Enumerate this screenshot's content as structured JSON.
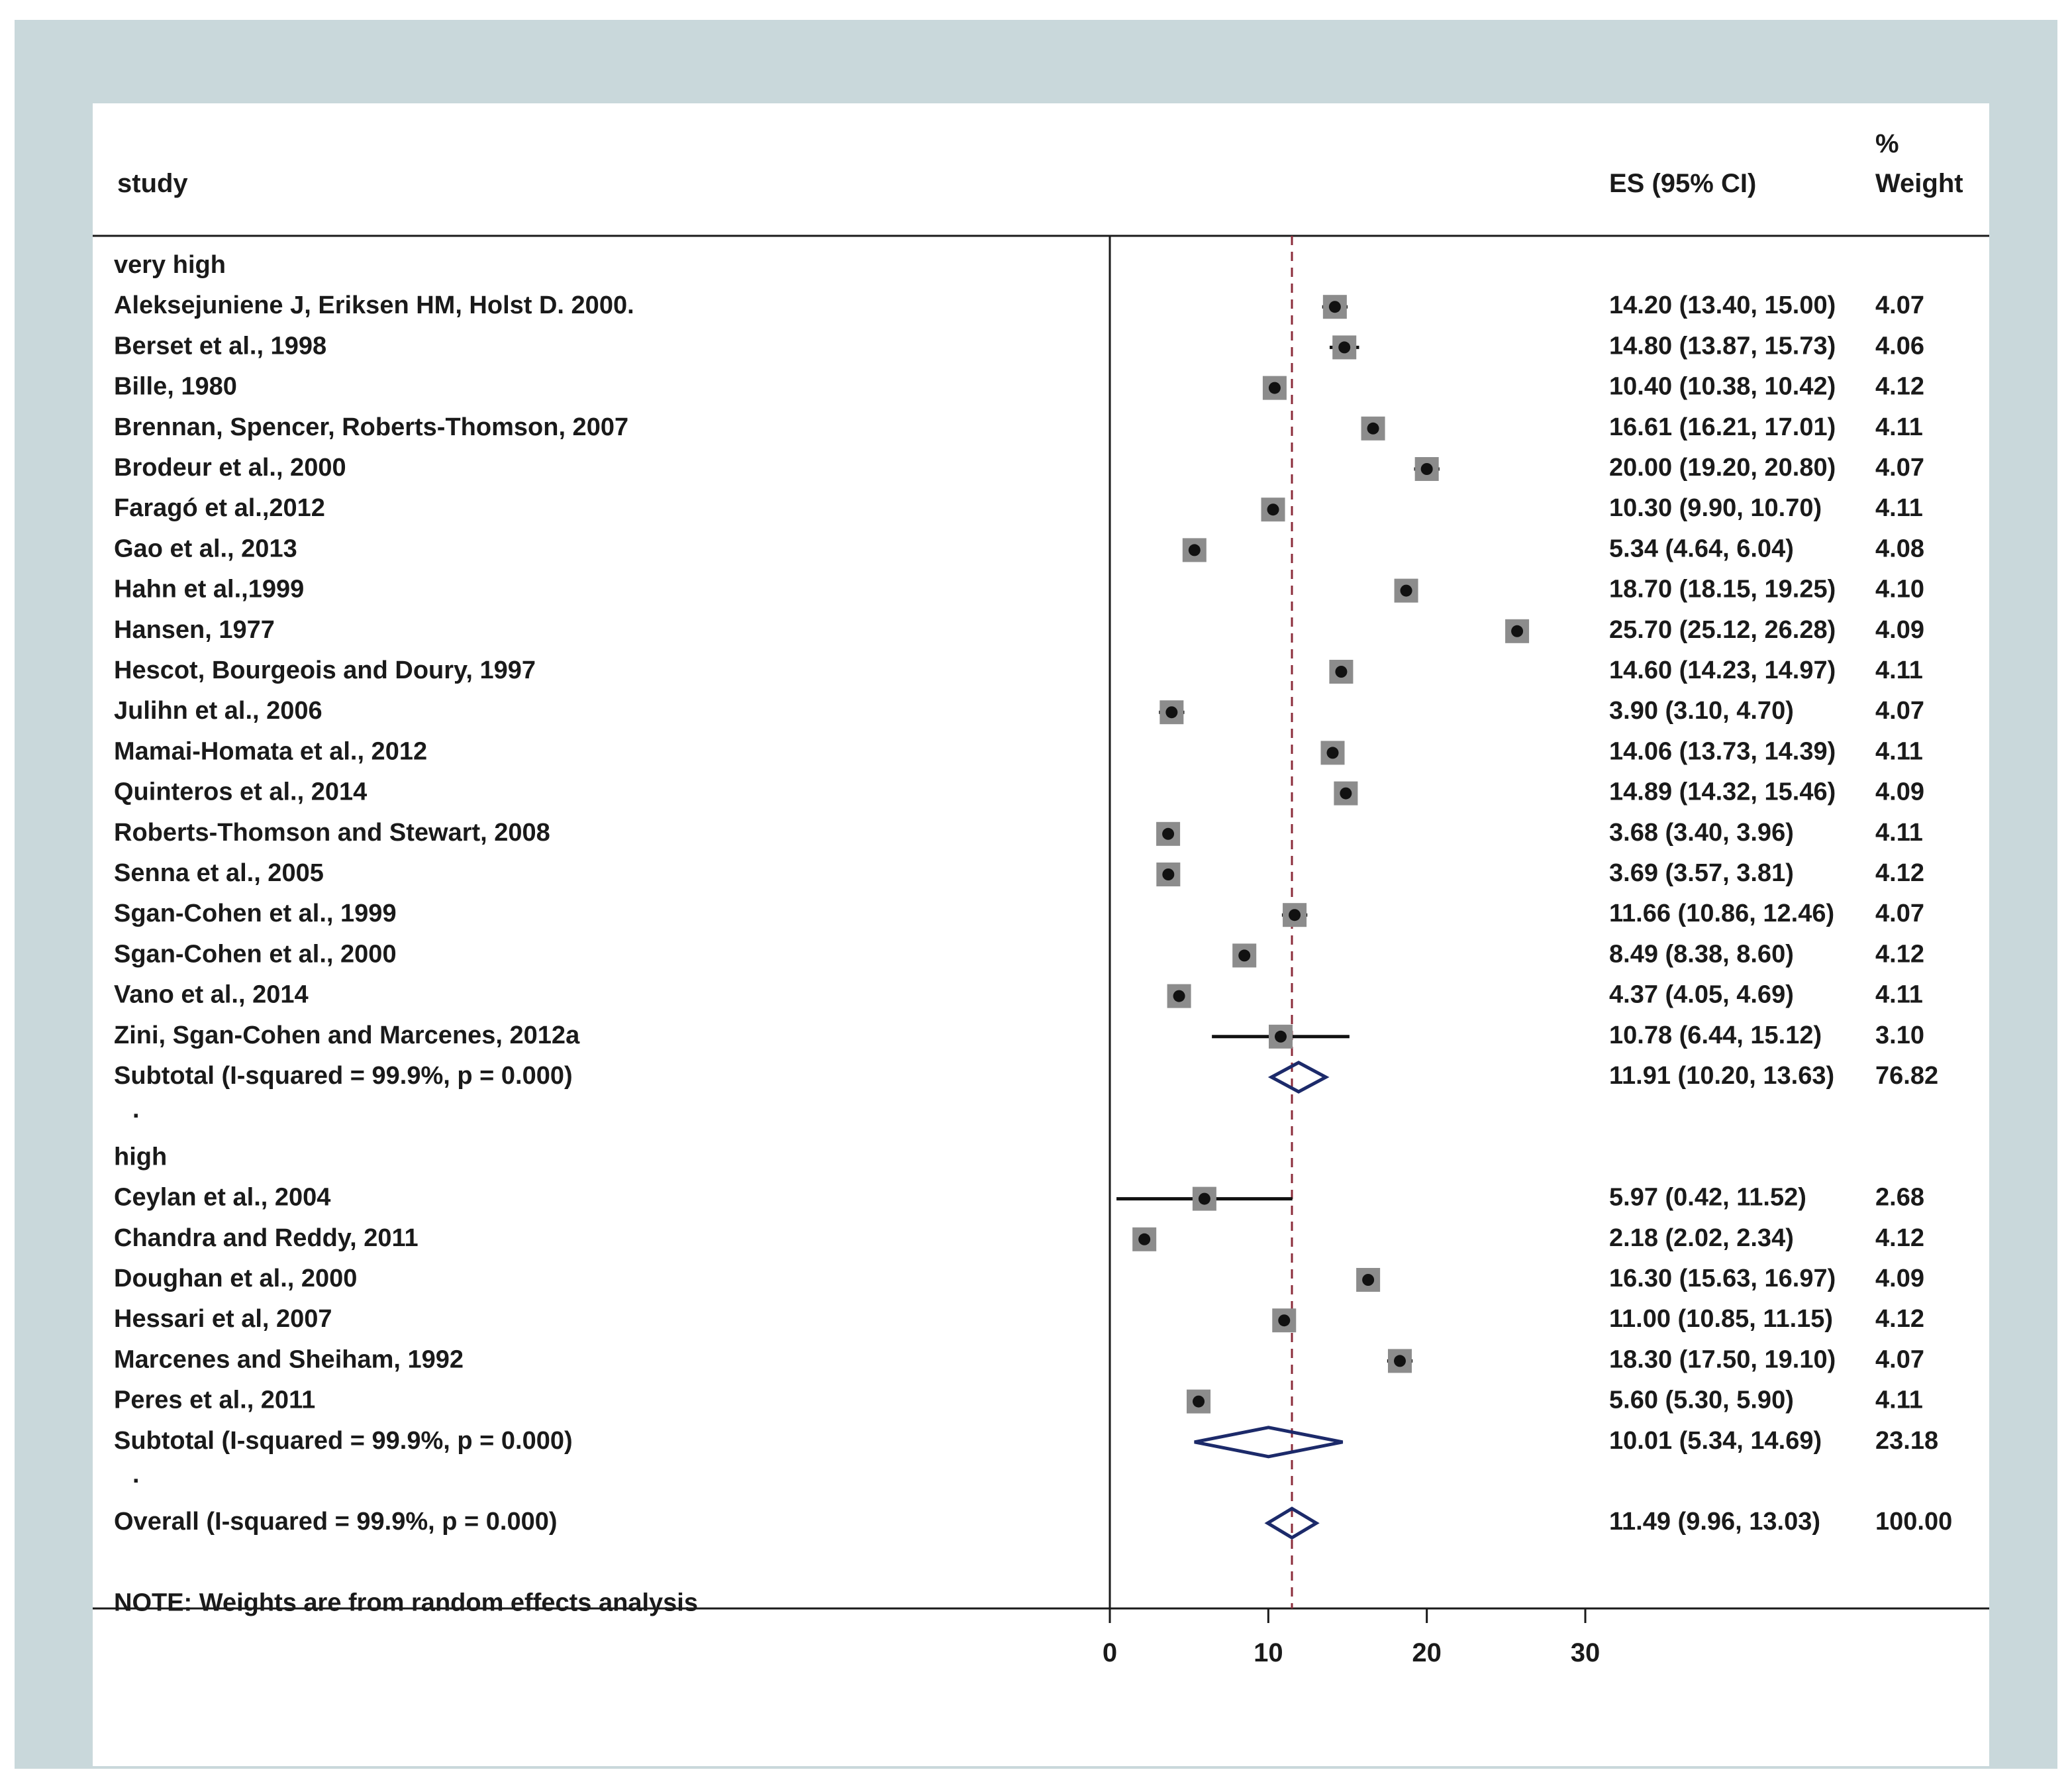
{
  "chart_data": {
    "type": "forest",
    "headers": {
      "study": "study",
      "es": "ES (95% CI)",
      "weight_line1": "%",
      "weight_line2": "Weight"
    },
    "x_ticks": [
      0,
      10,
      20,
      30
    ],
    "xlim": [
      0,
      30
    ],
    "overall_line": 11.49,
    "rows": [
      {
        "kind": "group",
        "label": "very high"
      },
      {
        "kind": "study",
        "label": "Aleksejuniene J, Eriksen HM, Holst D. 2000.",
        "es": 14.2,
        "lo": 13.4,
        "hi": 15.0,
        "es_text": "14.20 (13.40, 15.00)",
        "weight": "4.07"
      },
      {
        "kind": "study",
        "label": "Berset et al., 1998",
        "es": 14.8,
        "lo": 13.87,
        "hi": 15.73,
        "es_text": "14.80 (13.87, 15.73)",
        "weight": "4.06"
      },
      {
        "kind": "study",
        "label": "Bille, 1980",
        "es": 10.4,
        "lo": 10.38,
        "hi": 10.42,
        "es_text": "10.40 (10.38, 10.42)",
        "weight": "4.12"
      },
      {
        "kind": "study",
        "label": "Brennan, Spencer, Roberts-Thomson, 2007",
        "es": 16.61,
        "lo": 16.21,
        "hi": 17.01,
        "es_text": "16.61 (16.21, 17.01)",
        "weight": "4.11"
      },
      {
        "kind": "study",
        "label": "Brodeur et al., 2000",
        "es": 20.0,
        "lo": 19.2,
        "hi": 20.8,
        "es_text": "20.00 (19.20, 20.80)",
        "weight": "4.07"
      },
      {
        "kind": "study",
        "label": "Faragó et al.,2012",
        "es": 10.3,
        "lo": 9.9,
        "hi": 10.7,
        "es_text": "10.30 (9.90, 10.70)",
        "weight": "4.11"
      },
      {
        "kind": "study",
        "label": "Gao et al., 2013",
        "es": 5.34,
        "lo": 4.64,
        "hi": 6.04,
        "es_text": "5.34 (4.64, 6.04)",
        "weight": "4.08"
      },
      {
        "kind": "study",
        "label": "Hahn et al.,1999",
        "es": 18.7,
        "lo": 18.15,
        "hi": 19.25,
        "es_text": "18.70 (18.15, 19.25)",
        "weight": "4.10"
      },
      {
        "kind": "study",
        "label": "Hansen, 1977",
        "es": 25.7,
        "lo": 25.12,
        "hi": 26.28,
        "es_text": "25.70 (25.12, 26.28)",
        "weight": "4.09"
      },
      {
        "kind": "study",
        "label": "Hescot, Bourgeois and Doury, 1997",
        "es": 14.6,
        "lo": 14.23,
        "hi": 14.97,
        "es_text": "14.60 (14.23, 14.97)",
        "weight": "4.11"
      },
      {
        "kind": "study",
        "label": "Julihn et al., 2006",
        "es": 3.9,
        "lo": 3.1,
        "hi": 4.7,
        "es_text": "3.90 (3.10, 4.70)",
        "weight": "4.07"
      },
      {
        "kind": "study",
        "label": "Mamai-Homata et al., 2012",
        "es": 14.06,
        "lo": 13.73,
        "hi": 14.39,
        "es_text": "14.06 (13.73, 14.39)",
        "weight": "4.11"
      },
      {
        "kind": "study",
        "label": "Quinteros et al., 2014",
        "es": 14.89,
        "lo": 14.32,
        "hi": 15.46,
        "es_text": "14.89 (14.32, 15.46)",
        "weight": "4.09"
      },
      {
        "kind": "study",
        "label": "Roberts-Thomson and Stewart, 2008",
        "es": 3.68,
        "lo": 3.4,
        "hi": 3.96,
        "es_text": "3.68 (3.40, 3.96)",
        "weight": "4.11"
      },
      {
        "kind": "study",
        "label": "Senna et al., 2005",
        "es": 3.69,
        "lo": 3.57,
        "hi": 3.81,
        "es_text": "3.69 (3.57, 3.81)",
        "weight": "4.12"
      },
      {
        "kind": "study",
        "label": "Sgan-Cohen et al., 1999",
        "es": 11.66,
        "lo": 10.86,
        "hi": 12.46,
        "es_text": "11.66 (10.86, 12.46)",
        "weight": "4.07"
      },
      {
        "kind": "study",
        "label": "Sgan-Cohen et al., 2000",
        "es": 8.49,
        "lo": 8.38,
        "hi": 8.6,
        "es_text": "8.49 (8.38, 8.60)",
        "weight": "4.12"
      },
      {
        "kind": "study",
        "label": "Vano et al., 2014",
        "es": 4.37,
        "lo": 4.05,
        "hi": 4.69,
        "es_text": "4.37 (4.05, 4.69)",
        "weight": "4.11"
      },
      {
        "kind": "study",
        "label": "Zini, Sgan-Cohen and Marcenes, 2012a",
        "es": 10.78,
        "lo": 6.44,
        "hi": 15.12,
        "es_text": "10.78 (6.44, 15.12)",
        "weight": "3.10"
      },
      {
        "kind": "subtotal",
        "label": "Subtotal  (I-squared = 99.9%, p = 0.000)",
        "es": 11.91,
        "lo": 10.2,
        "hi": 13.63,
        "es_text": "11.91 (10.20, 13.63)",
        "weight": "76.82"
      },
      {
        "kind": "spacer",
        "label": "."
      },
      {
        "kind": "group",
        "label": "high"
      },
      {
        "kind": "study",
        "label": "Ceylan et al., 2004",
        "es": 5.97,
        "lo": 0.42,
        "hi": 11.52,
        "es_text": "5.97 (0.42, 11.52)",
        "weight": "2.68"
      },
      {
        "kind": "study",
        "label": "Chandra and Reddy, 2011",
        "es": 2.18,
        "lo": 2.02,
        "hi": 2.34,
        "es_text": "2.18 (2.02, 2.34)",
        "weight": "4.12"
      },
      {
        "kind": "study",
        "label": "Doughan et al., 2000",
        "es": 16.3,
        "lo": 15.63,
        "hi": 16.97,
        "es_text": "16.30 (15.63, 16.97)",
        "weight": "4.09"
      },
      {
        "kind": "study",
        "label": "Hessari et al, 2007",
        "es": 11.0,
        "lo": 10.85,
        "hi": 11.15,
        "es_text": "11.00 (10.85, 11.15)",
        "weight": "4.12"
      },
      {
        "kind": "study",
        "label": "Marcenes and Sheiham, 1992",
        "es": 18.3,
        "lo": 17.5,
        "hi": 19.1,
        "es_text": "18.30 (17.50, 19.10)",
        "weight": "4.07"
      },
      {
        "kind": "study",
        "label": "Peres et al., 2011",
        "es": 5.6,
        "lo": 5.3,
        "hi": 5.9,
        "es_text": "5.60 (5.30, 5.90)",
        "weight": "4.11"
      },
      {
        "kind": "subtotal",
        "label": "Subtotal  (I-squared = 99.9%, p = 0.000)",
        "es": 10.01,
        "lo": 5.34,
        "hi": 14.69,
        "es_text": "10.01 (5.34, 14.69)",
        "weight": "23.18"
      },
      {
        "kind": "spacer",
        "label": "."
      },
      {
        "kind": "overall",
        "label": "Overall  (I-squared = 99.9%, p = 0.000)",
        "es": 11.49,
        "lo": 9.96,
        "hi": 13.03,
        "es_text": "11.49 (9.96, 13.03)",
        "weight": "100.00"
      },
      {
        "kind": "blank"
      },
      {
        "kind": "note",
        "label": "NOTE: Weights are from random effects analysis"
      }
    ]
  },
  "colors": {
    "background": "#c9d8db",
    "panel": "#ffffff",
    "text": "#1a1a1a",
    "box": "#8c8c8c",
    "diamond": "#1c2a6a",
    "ref_line": "#8b2c3a"
  }
}
